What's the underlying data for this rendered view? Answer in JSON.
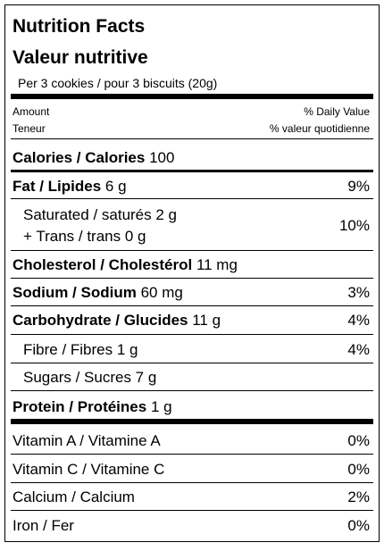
{
  "header": {
    "title": "Nutrition Facts",
    "title_fr": "Valeur nutritive",
    "serving": "Per 3 cookies / pour 3 biscuits (20g)"
  },
  "columns": {
    "amount": "Amount",
    "amount_fr": "Teneur",
    "dv": "% Daily Value",
    "dv_fr": "% valeur quotidienne"
  },
  "nutrients": [
    {
      "name": "Calories / Calories",
      "amount": "100"
    },
    {
      "name": "Fat / Lipides",
      "amount": "6 g",
      "dv": "9%"
    },
    {
      "lines": [
        "Saturated / saturés 2 g",
        "+ Trans / trans 0 g"
      ],
      "dv": "10%"
    },
    {
      "name": "Cholesterol / Cholestérol",
      "amount": "11 mg"
    },
    {
      "name": "Sodium / Sodium",
      "amount": "60 mg",
      "dv": "3%"
    },
    {
      "name": "Carbohydrate / Glucides",
      "amount": "11 g",
      "dv": "4%"
    },
    {
      "text": "Fibre / Fibres 1 g",
      "dv": "4%"
    },
    {
      "text": "Sugars / Sucres 7 g"
    },
    {
      "name": "Protein / Protéines",
      "amount": "1 g"
    }
  ],
  "vitamins": [
    {
      "name": "Vitamin A / Vitamine A",
      "dv": "0%"
    },
    {
      "name": "Vitamin C / Vitamine C",
      "dv": "0%"
    },
    {
      "name": "Calcium / Calcium",
      "dv": "2%"
    },
    {
      "name": "Iron / Fer",
      "dv": "0%"
    }
  ]
}
